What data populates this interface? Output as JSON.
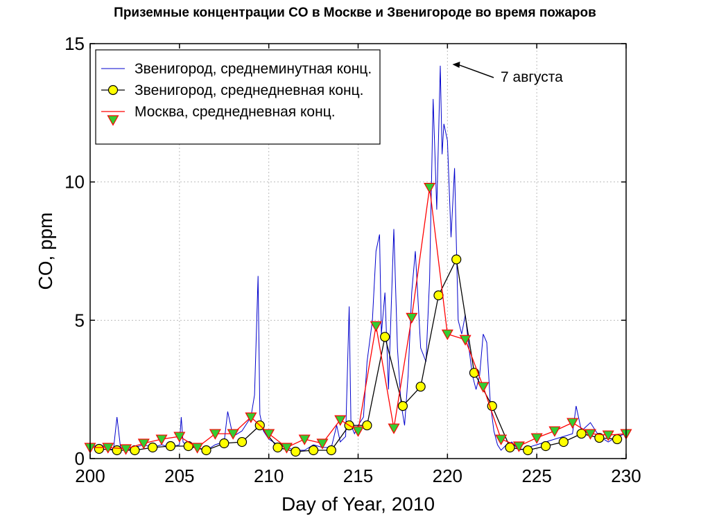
{
  "title": "Приземные концентрации CO в Москве и Звенигороде во время пожаров",
  "chart_data": {
    "type": "line",
    "title": "Приземные концентрации CO в Москве и Звенигороде во время пожаров",
    "xlabel": "Day of Year, 2010",
    "ylabel": "CO, ppm",
    "xlim": [
      200,
      230
    ],
    "ylim": [
      0,
      15
    ],
    "xticks": [
      "200",
      "205",
      "210",
      "215",
      "220",
      "225",
      "230"
    ],
    "yticks": [
      "0",
      "5",
      "10",
      "15"
    ],
    "grid": true,
    "legend_position": "top-left",
    "annotation": {
      "text": "7 августа",
      "x": 220.2,
      "y": 14.2
    },
    "series": [
      {
        "name": "Звенигород, среднеминутная конц.",
        "style": "line",
        "color": "#0000cc",
        "x": [
          200,
          200.5,
          201,
          201.3,
          201.5,
          201.7,
          202,
          202.5,
          203,
          203.5,
          204,
          204.5,
          205,
          205.1,
          205.2,
          205.5,
          206,
          206.5,
          207,
          207.5,
          207.7,
          208,
          208.5,
          209,
          209.2,
          209.4,
          209.5,
          209.7,
          210,
          210.5,
          211,
          211.5,
          212,
          212.5,
          213,
          213.5,
          213.8,
          214,
          214.3,
          214.5,
          214.6,
          214.8,
          215,
          215.3,
          215.5,
          215.8,
          216,
          216.2,
          216.3,
          216.5,
          216.7,
          217,
          217.2,
          217.4,
          217.6,
          217.8,
          218,
          218.2,
          218.5,
          218.8,
          219,
          219.2,
          219.4,
          219.6,
          219.7,
          219.8,
          220,
          220.2,
          220.4,
          220.6,
          220.8,
          221,
          221.2,
          221.4,
          221.6,
          221.8,
          222,
          222.2,
          222.4,
          222.6,
          222.8,
          223,
          223.3,
          223.6,
          224,
          224.5,
          225,
          225.5,
          226,
          226.5,
          227,
          227.2,
          227.5,
          228,
          228.5,
          229,
          229.5,
          230
        ],
        "y": [
          0.4,
          0.5,
          0.4,
          0.3,
          1.5,
          0.4,
          0.3,
          0.4,
          0.5,
          0.4,
          0.5,
          0.4,
          0.5,
          1.5,
          0.6,
          0.4,
          0.4,
          0.3,
          0.5,
          0.6,
          1.7,
          0.8,
          1.0,
          1.5,
          2.3,
          6.6,
          1.6,
          1.0,
          0.7,
          0.5,
          0.4,
          0.3,
          0.3,
          0.5,
          0.4,
          0.4,
          1.2,
          0.6,
          0.8,
          5.5,
          1.2,
          0.9,
          1.2,
          1.5,
          3.5,
          5.0,
          7.5,
          8.1,
          4.5,
          6.0,
          2.5,
          8.3,
          4.0,
          2.0,
          1.2,
          3.0,
          6.0,
          7.5,
          4.0,
          3.5,
          6.5,
          13.0,
          9.0,
          14.2,
          11.0,
          12.1,
          11.5,
          8.0,
          10.5,
          5.0,
          4.5,
          5.2,
          4.0,
          3.0,
          2.5,
          3.0,
          4.5,
          4.2,
          2.0,
          1.0,
          0.5,
          0.3,
          0.5,
          0.6,
          0.3,
          0.4,
          0.5,
          0.6,
          0.7,
          0.8,
          0.9,
          1.9,
          1.0,
          1.3,
          0.8,
          0.6,
          0.8,
          0.9
        ]
      },
      {
        "name": "Звенигород, среднедневная конц.",
        "style": "line+circle",
        "color": "#000000",
        "marker_fill": "#ffff00",
        "x": [
          200.5,
          201.5,
          202.5,
          203.5,
          204.5,
          205.5,
          206.5,
          207.5,
          208.5,
          209.5,
          210.5,
          211.5,
          212.5,
          213.5,
          214.5,
          215.5,
          216.5,
          217.5,
          218.5,
          219.5,
          220.5,
          221.5,
          222.5,
          223.5,
          224.5,
          225.5,
          226.5,
          227.5,
          228.5,
          229.5
        ],
        "y": [
          0.35,
          0.3,
          0.3,
          0.4,
          0.45,
          0.45,
          0.3,
          0.55,
          0.6,
          1.2,
          0.4,
          0.25,
          0.3,
          0.3,
          1.2,
          1.2,
          4.4,
          1.9,
          2.6,
          5.9,
          7.2,
          3.1,
          1.9,
          0.4,
          0.3,
          0.45,
          0.6,
          0.9,
          0.75,
          0.7
        ]
      },
      {
        "name": "Москва, среднедневная конц.",
        "style": "line+triangle",
        "color": "#ff0000",
        "marker_fill": "#33cc33",
        "x": [
          200,
          201,
          202,
          203,
          204,
          205,
          206,
          207,
          208,
          209,
          210,
          211,
          212,
          213,
          214,
          215,
          216,
          217,
          218,
          219,
          220,
          221,
          222,
          223,
          224,
          225,
          226,
          227,
          228,
          229,
          230
        ],
        "y": [
          0.4,
          0.4,
          0.35,
          0.55,
          0.7,
          0.8,
          0.4,
          0.9,
          0.9,
          1.5,
          0.9,
          0.4,
          0.7,
          0.55,
          1.4,
          1.0,
          4.8,
          1.1,
          5.1,
          9.8,
          4.5,
          4.3,
          2.6,
          0.7,
          0.45,
          0.75,
          1.0,
          1.3,
          0.9,
          0.85,
          0.9
        ]
      }
    ]
  }
}
